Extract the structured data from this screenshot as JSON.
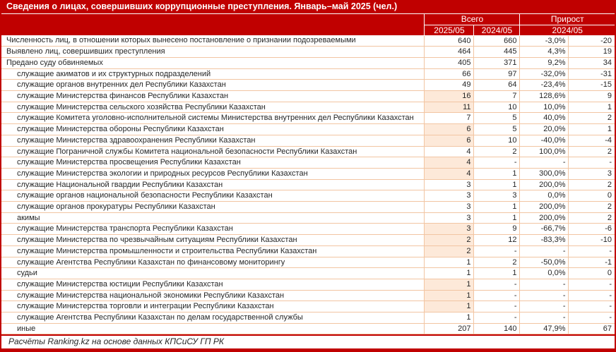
{
  "colors": {
    "accent_red": "#C00000",
    "row_border": "#F2C5A2",
    "highlight_fill": "#FDE9D9"
  },
  "chart_data": {
    "type": "table",
    "title": "Сведения о лицах, совершивших коррупционные преступления. Январь–май 2025 (чел.)",
    "header": {
      "group_total": "Всего",
      "group_growth": "Прирост",
      "sub_2025": "2025/05",
      "sub_2024": "2024/05",
      "sub_growth": "2024/05"
    },
    "rows": [
      {
        "label": "Численность лиц, в отношении которых вынесено постановление о признании подозреваемыми",
        "indent": false,
        "highlight": false,
        "values": [
          "640",
          "660",
          "-3,0%",
          "-20"
        ]
      },
      {
        "label": "Выявлено лиц, совершивших преступления",
        "indent": false,
        "highlight": false,
        "values": [
          "464",
          "445",
          "4,3%",
          "19"
        ]
      },
      {
        "label": "Предано суду обвиняемых",
        "indent": false,
        "highlight": false,
        "values": [
          "405",
          "371",
          "9,2%",
          "34"
        ]
      },
      {
        "label": "служащие акиматов и их структурных подразделений",
        "indent": true,
        "highlight": false,
        "values": [
          "66",
          "97",
          "-32,0%",
          "-31"
        ]
      },
      {
        "label": "служащие органов внутренних дел Республики Казахстан",
        "indent": true,
        "highlight": false,
        "values": [
          "49",
          "64",
          "-23,4%",
          "-15"
        ]
      },
      {
        "label": "служащие Министерства финансов Республики Казахстан",
        "indent": true,
        "highlight": true,
        "values": [
          "16",
          "7",
          "128,6%",
          "9"
        ]
      },
      {
        "label": "служащие Министерства сельского хозяйства Республики Казахстан",
        "indent": true,
        "highlight": true,
        "values": [
          "11",
          "10",
          "10,0%",
          "1"
        ]
      },
      {
        "label": "служащие Комитета уголовно-исполнительной системы Министерства внутренних дел Республики Казахстан",
        "indent": true,
        "highlight": false,
        "values": [
          "7",
          "5",
          "40,0%",
          "2"
        ]
      },
      {
        "label": "служащие Министерства обороны Республики Казахстан",
        "indent": true,
        "highlight": true,
        "values": [
          "6",
          "5",
          "20,0%",
          "1"
        ]
      },
      {
        "label": "служащие Министерства здравоохранения Республики Казахстан",
        "indent": true,
        "highlight": true,
        "values": [
          "6",
          "10",
          "-40,0%",
          "-4"
        ]
      },
      {
        "label": "служащие Пограничной службы Комитета национальной безопасности Республики Казахстан",
        "indent": true,
        "highlight": false,
        "values": [
          "4",
          "2",
          "100,0%",
          "2"
        ]
      },
      {
        "label": "служащие Министерства просвещения Республики Казахстан",
        "indent": true,
        "highlight": true,
        "values": [
          "4",
          "-",
          "-",
          "-"
        ]
      },
      {
        "label": "служащие Министерства экологии и природных ресурсов Республики Казахстан",
        "indent": true,
        "highlight": true,
        "values": [
          "4",
          "1",
          "300,0%",
          "3"
        ]
      },
      {
        "label": "служащие Национальной гвардии Республики Казахстан",
        "indent": true,
        "highlight": false,
        "values": [
          "3",
          "1",
          "200,0%",
          "2"
        ]
      },
      {
        "label": "служащие органов национальной безопасности Республики Казахстан",
        "indent": true,
        "highlight": false,
        "values": [
          "3",
          "3",
          "0,0%",
          "0"
        ]
      },
      {
        "label": "служащие органов прокуратуры Республики Казахстан",
        "indent": true,
        "highlight": false,
        "values": [
          "3",
          "1",
          "200,0%",
          "2"
        ]
      },
      {
        "label": "акимы",
        "indent": true,
        "highlight": false,
        "values": [
          "3",
          "1",
          "200,0%",
          "2"
        ]
      },
      {
        "label": "служащие Министерства транспорта Республики Казахстан",
        "indent": true,
        "highlight": true,
        "values": [
          "3",
          "9",
          "-66,7%",
          "-6"
        ]
      },
      {
        "label": "служащие Министерства по чрезвычайным ситуациям Республики Казахстан",
        "indent": true,
        "highlight": true,
        "values": [
          "2",
          "12",
          "-83,3%",
          "-10"
        ]
      },
      {
        "label": "служащие Министерства промышленности и строительства Республики Казахстан",
        "indent": true,
        "highlight": true,
        "values": [
          "2",
          "-",
          "-",
          "-"
        ]
      },
      {
        "label": "служащие Агентства Республики Казахстан по финансовому мониторингу",
        "indent": true,
        "highlight": false,
        "values": [
          "1",
          "2",
          "-50,0%",
          "-1"
        ]
      },
      {
        "label": "судьи",
        "indent": true,
        "highlight": false,
        "values": [
          "1",
          "1",
          "0,0%",
          "0"
        ]
      },
      {
        "label": "служащие Министерства юстиции Республики Казахстан",
        "indent": true,
        "highlight": true,
        "values": [
          "1",
          "-",
          "-",
          "-"
        ]
      },
      {
        "label": "служащие Министерства национальной экономики Республики Казахстан",
        "indent": true,
        "highlight": true,
        "values": [
          "1",
          "-",
          "-",
          "-"
        ]
      },
      {
        "label": "служащие Министерства торговли и интеграции Республики Казахстан",
        "indent": true,
        "highlight": true,
        "values": [
          "1",
          "-",
          "-",
          "-"
        ]
      },
      {
        "label": "служащие Агентства Республики Казахстан по делам государственной службы",
        "indent": true,
        "highlight": false,
        "values": [
          "1",
          "-",
          "-",
          "-"
        ]
      },
      {
        "label": "иные",
        "indent": true,
        "highlight": false,
        "values": [
          "207",
          "140",
          "47,9%",
          "67"
        ]
      }
    ],
    "source": "Расчёты Ranking.kz на основе данных КПСиСУ ГП РК"
  }
}
